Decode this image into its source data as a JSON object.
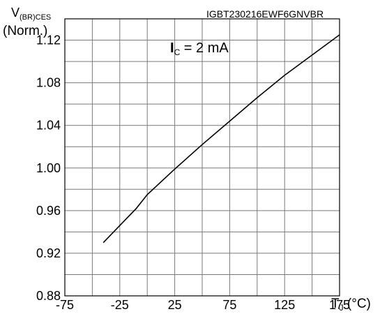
{
  "chart_data": {
    "type": "line",
    "title": "",
    "part_code": "IGBT230216EWF6GNVBR",
    "annotation": {
      "main": "I",
      "sub": "C",
      "rest": " = 2 mA"
    },
    "ylabel": {
      "main": "V",
      "sub": "(BR)CES",
      "line2": "(Norm.)"
    },
    "xlabel": {
      "main": "T",
      "sub": "J",
      "rest": " (°C)"
    },
    "xlim": [
      -75,
      175
    ],
    "ylim": [
      0.88,
      1.14
    ],
    "x_ticks": [
      -75,
      -25,
      25,
      75,
      125,
      175
    ],
    "x_tick_labels": [
      "-75",
      "-25",
      "25",
      "75",
      "125",
      "175"
    ],
    "y_ticks": [
      0.88,
      0.92,
      0.96,
      1.0,
      1.04,
      1.08,
      1.12
    ],
    "y_tick_labels": [
      "0.88",
      "0.92",
      "0.96",
      "1.00",
      "1.04",
      "1.08",
      "1.12"
    ],
    "grid": true,
    "series": [
      {
        "x": [
          -40,
          -25,
          -10,
          0,
          25,
          50,
          75,
          100,
          125,
          150,
          175
        ],
        "y": [
          0.93,
          0.946,
          0.962,
          0.975,
          0.999,
          1.022,
          1.044,
          1.066,
          1.087,
          1.106,
          1.125
        ]
      }
    ]
  }
}
